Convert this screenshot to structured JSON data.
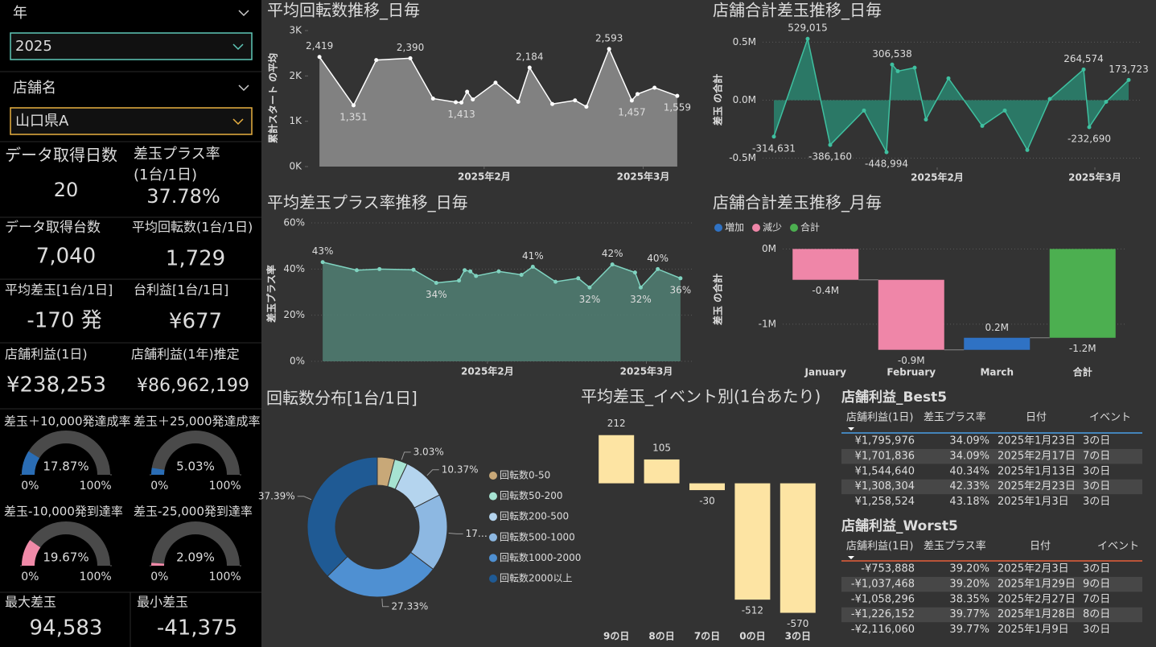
{
  "slicers": [
    {
      "label": "年",
      "value": "2025"
    },
    {
      "label": "店舗名",
      "value": "山口県A"
    }
  ],
  "kpis": [
    {
      "label": "データ取得日数",
      "value": "20"
    },
    {
      "label": "差玉プラス率",
      "sublabel": "(1台/1日)",
      "value": "37.78%"
    },
    {
      "label": "データ取得台数",
      "value": "7,040"
    },
    {
      "label": "平均回転数(1台/1日)",
      "value": "1,729"
    },
    {
      "label": "平均差玉[1台/1日]",
      "value": "-170 発"
    },
    {
      "label": "台利益[1台/1日]",
      "value": "¥677"
    },
    {
      "label": "店舗利益(1日)",
      "value": "¥238,253"
    },
    {
      "label": "店舗利益(1年)推定",
      "value": "¥86,962,199"
    },
    {
      "label": "最大差玉",
      "value": "94,583"
    },
    {
      "label": "最小差玉",
      "value": "-41,375"
    }
  ],
  "chart_data": [
    {
      "type": "line",
      "title": "平均回転数推移_日毎",
      "y_label": "累計スタート の平均",
      "color": "#ffffff",
      "area_color": "#8a8a8a",
      "x": [
        3,
        9,
        13,
        19,
        23,
        27,
        28,
        29,
        30,
        34,
        38,
        40,
        44,
        48,
        50,
        54,
        58,
        59,
        62,
        66
      ],
      "values": [
        2419,
        1351,
        2350,
        2390,
        1500,
        1420,
        1413,
        1650,
        1480,
        1850,
        1430,
        2184,
        1380,
        1460,
        1320,
        2593,
        1457,
        1600,
        1740,
        1559
      ],
      "value_labels": [
        "2,419",
        "1,351",
        null,
        "2,390",
        null,
        null,
        "1,413",
        null,
        null,
        null,
        null,
        "2,184",
        null,
        null,
        null,
        "2,593",
        "1,457",
        null,
        null,
        "1,559"
      ],
      "xlim": [
        1,
        68
      ],
      "xticks": [
        {
          "value": 32,
          "label": "2025年2月"
        },
        {
          "value": 60,
          "label": "2025年3月"
        }
      ],
      "ylim": [
        0,
        3000
      ],
      "yticks": [
        {
          "value": 0,
          "label": "0K"
        },
        {
          "value": 1000,
          "label": "1K"
        },
        {
          "value": 2000,
          "label": "2K"
        },
        {
          "value": 3000,
          "label": "3K"
        }
      ],
      "grid": false
    },
    {
      "type": "line",
      "title": "平均差玉プラス率推移_日毎",
      "y_label": "差玉プラス率",
      "color": "#7fd3c0",
      "area_color": "#4f7b70",
      "x": [
        3,
        9,
        13,
        19,
        23,
        27,
        28,
        29,
        30,
        34,
        38,
        40,
        44,
        48,
        50,
        54,
        58,
        59,
        62,
        66
      ],
      "values": [
        43,
        39.5,
        40,
        39.7,
        34,
        35,
        39.5,
        39,
        37,
        39,
        37.5,
        41,
        34.5,
        36,
        32,
        42,
        38.5,
        32,
        40,
        36
      ],
      "value_labels": [
        "43%",
        null,
        null,
        null,
        "34%",
        null,
        null,
        null,
        null,
        null,
        null,
        "41%",
        null,
        null,
        "32%",
        "42%",
        null,
        "32%",
        "40%",
        "36%"
      ],
      "xlim": [
        1,
        68
      ],
      "xticks": [
        {
          "value": 32,
          "label": "2025年2月"
        },
        {
          "value": 60,
          "label": "2025年3月"
        }
      ],
      "ylim": [
        0,
        60
      ],
      "yticks": [
        {
          "value": 0,
          "label": "0%"
        },
        {
          "value": 20,
          "label": "20%"
        },
        {
          "value": 40,
          "label": "40%"
        },
        {
          "value": 60,
          "label": "60%"
        }
      ],
      "grid": true
    },
    {
      "type": "line",
      "title": "店舗合計差玉推移_日毎",
      "y_label": "差玉 の合計",
      "color": "#3fc0a0",
      "area_color": "#2a7f6b",
      "x": [
        3,
        9,
        13,
        19,
        23,
        24,
        25,
        28,
        30,
        34,
        40,
        44,
        48,
        52,
        58,
        59,
        62,
        66
      ],
      "values": [
        -314631,
        529015,
        -386160,
        -90000,
        -448994,
        306538,
        250000,
        280000,
        -167000,
        188000,
        -222000,
        -90000,
        -430000,
        10000,
        264574,
        -232690,
        -14000,
        173723
      ],
      "value_labels": [
        "-314,631",
        "529,015",
        "-386,160",
        null,
        "-448,994",
        "306,538",
        null,
        null,
        null,
        null,
        null,
        null,
        null,
        null,
        "264,574",
        "-232,690",
        null,
        "173,723"
      ],
      "xlim": [
        1,
        68
      ],
      "xticks": [
        {
          "value": 32,
          "label": "2025年2月"
        },
        {
          "value": 60,
          "label": "2025年3月"
        }
      ],
      "ylim": [
        -580000,
        600000
      ],
      "yticks": [
        {
          "value": -500000,
          "label": "-0.5M"
        },
        {
          "value": 0,
          "label": "0.0M"
        },
        {
          "value": 500000,
          "label": "0.5M"
        }
      ],
      "grid": true
    },
    {
      "type": "waterfall",
      "title": "店舗合計差玉推移_月毎",
      "y_label": "差玉 の合計",
      "legend": [
        {
          "name": "増加",
          "color": "#2f72c4"
        },
        {
          "name": "減少",
          "color": "#ef86a8"
        },
        {
          "name": "合計",
          "color": "#4caf50"
        }
      ],
      "categories": [
        "January",
        "February",
        "March",
        "合計"
      ],
      "values": [
        -410000,
        -930000,
        160000,
        -1180000
      ],
      "value_labels": [
        "-0.4M",
        "-0.9M",
        "0.2M",
        "-1.2M"
      ],
      "totals": [
        false,
        false,
        false,
        true
      ],
      "ylim": [
        -1450000,
        100000
      ],
      "yticks": [
        {
          "value": 0,
          "label": "0M"
        },
        {
          "value": -1000000,
          "label": "-1M"
        }
      ],
      "grid": true
    },
    {
      "type": "donut",
      "title": "回転数分布[1台/1日]",
      "categories": [
        "回転数0-50",
        "回転数50-200",
        "回転数200-500",
        "回転数500-1000",
        "回転数1000-2000",
        "回転数2000以上"
      ],
      "values": [
        4.0,
        3.03,
        10.37,
        17.88,
        27.33,
        37.39
      ],
      "value_labels": [
        null,
        "3.03%",
        "10.37%",
        "17…",
        "27.33%",
        "37.39%"
      ],
      "colors": [
        "#c8a878",
        "#a6e3d2",
        "#b4d4ee",
        "#8db8e2",
        "#4f90d2",
        "#1f5a94"
      ]
    },
    {
      "type": "bar",
      "title": "平均差玉_イベント別(1台あたり)",
      "categories": [
        "9の日",
        "8の日",
        "7の日",
        "0の日",
        "3の日"
      ],
      "values": [
        212,
        105,
        -30,
        -512,
        -570
      ],
      "color": "#fde4a3",
      "ylim": [
        -600,
        250
      ]
    },
    {
      "type": "gauge",
      "title": "差玉＋10,000発達成率",
      "values": [
        17.87
      ],
      "value_labels": [
        "17.87%"
      ],
      "color": "#2a6db5",
      "ylim": [
        0,
        100
      ],
      "yticks": [
        {
          "value": 0,
          "label": "0%"
        },
        {
          "value": 100,
          "label": "100%"
        }
      ]
    },
    {
      "type": "gauge",
      "title": "差玉＋25,000発達成率",
      "values": [
        5.03
      ],
      "value_labels": [
        "5.03%"
      ],
      "color": "#2a6db5",
      "ylim": [
        0,
        100
      ],
      "yticks": [
        {
          "value": 0,
          "label": "0%"
        },
        {
          "value": 100,
          "label": "100%"
        }
      ]
    },
    {
      "type": "gauge",
      "title": "差玉-10,000発到達率",
      "values": [
        19.67
      ],
      "value_labels": [
        "19.67%"
      ],
      "color": "#f08aa8",
      "ylim": [
        0,
        100
      ],
      "yticks": [
        {
          "value": 0,
          "label": "0%"
        },
        {
          "value": 100,
          "label": "100%"
        }
      ]
    },
    {
      "type": "gauge",
      "title": "差玉-25,000発到達率",
      "values": [
        2.09
      ],
      "value_labels": [
        "2.09%"
      ],
      "color": "#f08aa8",
      "ylim": [
        0,
        100
      ],
      "yticks": [
        {
          "value": 0,
          "label": "0%"
        },
        {
          "value": 100,
          "label": "100%"
        }
      ]
    }
  ],
  "tables": [
    {
      "title": "店舗利益_Best5",
      "columns": [
        "店舗利益(1日)",
        "差玉プラス率",
        "日付",
        "イベント"
      ],
      "rows": [
        [
          "¥1,795,976",
          "34.09%",
          "2025年1月23日",
          "3の日"
        ],
        [
          "¥1,701,836",
          "34.09%",
          "2025年2月17日",
          "7の日"
        ],
        [
          "¥1,544,640",
          "40.34%",
          "2025年1月13日",
          "3の日"
        ],
        [
          "¥1,308,304",
          "42.33%",
          "2025年2月23日",
          "3の日"
        ],
        [
          "¥1,258,524",
          "43.18%",
          "2025年1月3日",
          "3の日"
        ]
      ]
    },
    {
      "title": "店舗利益_Worst5",
      "columns": [
        "店舗利益(1日)",
        "差玉プラス率",
        "日付",
        "イベント"
      ],
      "rows": [
        [
          "-¥753,888",
          "39.20%",
          "2025年2月3日",
          "3の日"
        ],
        [
          "-¥1,037,468",
          "39.20%",
          "2025年1月29日",
          "9の日"
        ],
        [
          "-¥1,058,296",
          "38.35%",
          "2025年2月27日",
          "7の日"
        ],
        [
          "-¥1,226,152",
          "39.77%",
          "2025年1月28日",
          "8の日"
        ],
        [
          "-¥2,116,060",
          "39.77%",
          "2025年1月9日",
          "3の日"
        ]
      ]
    }
  ]
}
